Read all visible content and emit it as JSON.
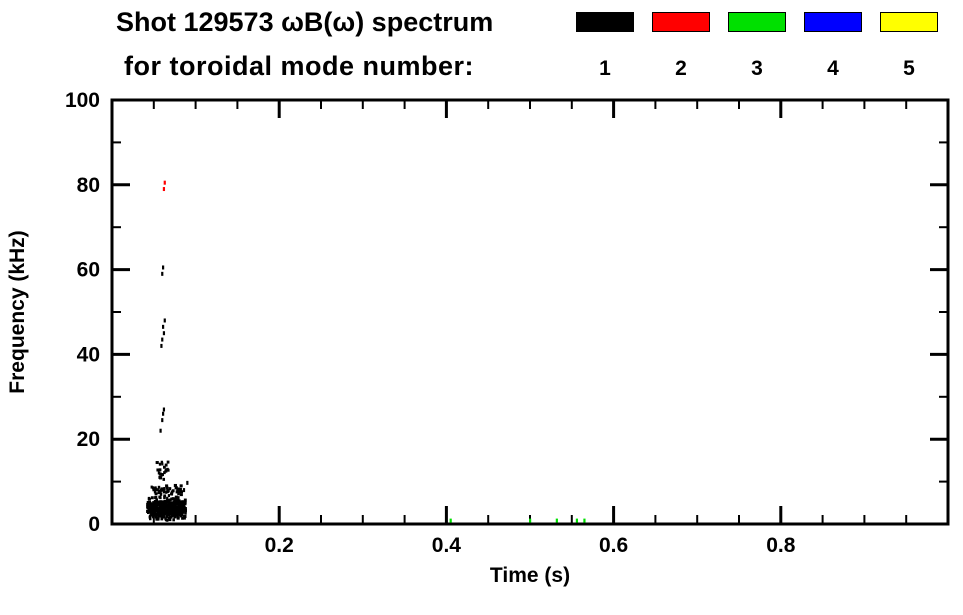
{
  "header": {
    "title": "Shot 129573 ωB(ω) spectrum",
    "subtitle": "for toroidal mode number:"
  },
  "chart_data": {
    "type": "scatter",
    "title": "Shot 129573 ωB(ω) spectrum",
    "subtitle": "for toroidal mode number:",
    "xlabel": "Time (s)",
    "ylabel": "Frequency (kHz)",
    "xlim": [
      0.0,
      1.0
    ],
    "ylim": [
      0,
      100
    ],
    "xticks": [
      0.2,
      0.4,
      0.6,
      0.8
    ],
    "xminor_step": 0.05,
    "yticks": [
      0,
      20,
      40,
      60,
      80,
      100
    ],
    "yminor_step": 10,
    "grid": false,
    "legend_position": "top-right",
    "legend": [
      {
        "label": "1",
        "color": "#000000"
      },
      {
        "label": "2",
        "color": "#ff0000"
      },
      {
        "label": "3",
        "color": "#00e000"
      },
      {
        "label": "4",
        "color": "#0000ff"
      },
      {
        "label": "5",
        "color": "#ffff00"
      }
    ],
    "series": [
      {
        "name": "n=1",
        "color": "#000000",
        "clusters": [
          {
            "t_range": [
              0.042,
              0.088
            ],
            "f_range": [
              0.8,
              6.5
            ],
            "count": 420
          },
          {
            "t_range": [
              0.047,
              0.083
            ],
            "f_range": [
              6.0,
              9.5
            ],
            "count": 55
          },
          {
            "t_range": [
              0.053,
              0.068
            ],
            "f_range": [
              9.5,
              16.0
            ],
            "count": 22
          }
        ],
        "points": [
          [
            0.086,
            8.0
          ],
          [
            0.09,
            9.7
          ],
          [
            0.058,
            22.0
          ],
          [
            0.06,
            24.5
          ],
          [
            0.061,
            26.0
          ],
          [
            0.062,
            27.0
          ],
          [
            0.059,
            42.0
          ],
          [
            0.06,
            43.5
          ],
          [
            0.062,
            45.0
          ],
          [
            0.061,
            46.5
          ],
          [
            0.063,
            48.0
          ],
          [
            0.06,
            59.0
          ],
          [
            0.061,
            60.5
          ]
        ]
      },
      {
        "name": "n=2",
        "color": "#ff0000",
        "clusters": [],
        "points": [
          [
            0.062,
            79.0
          ],
          [
            0.063,
            80.5
          ]
        ]
      },
      {
        "name": "n=3",
        "color": "#00e000",
        "clusters": [],
        "points": [
          [
            0.405,
            0.8
          ],
          [
            0.5,
            0.8
          ],
          [
            0.532,
            0.8
          ],
          [
            0.556,
            0.8
          ],
          [
            0.565,
            0.8
          ]
        ]
      },
      {
        "name": "n=4",
        "color": "#0000ff",
        "clusters": [],
        "points": []
      },
      {
        "name": "n=5",
        "color": "#ffff00",
        "clusters": [],
        "points": []
      }
    ]
  }
}
